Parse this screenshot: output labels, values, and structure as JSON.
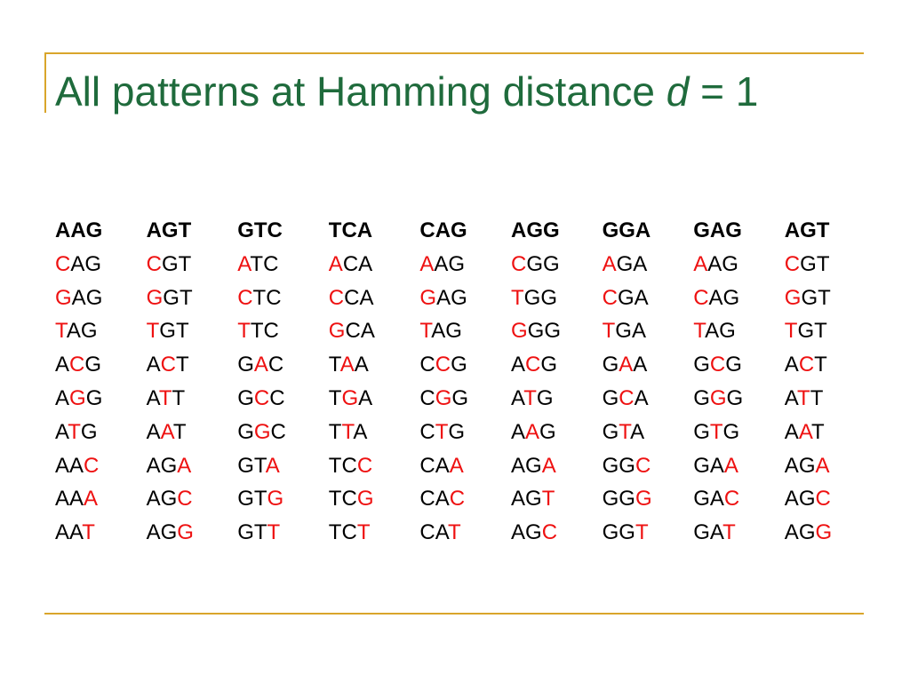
{
  "slide": {
    "title_prefix": "All patterns at Hamming distance ",
    "title_variable": "d",
    "title_suffix": " = 1"
  },
  "colors": {
    "title": "#1f6b3c",
    "rule": "#d9a52b",
    "mismatch": "#ee1111",
    "text": "#000000"
  },
  "table": {
    "columns": [
      {
        "header": "AAG",
        "neighbors": [
          {
            "text": "CAG",
            "pos": 0
          },
          {
            "text": "GAG",
            "pos": 0
          },
          {
            "text": "TAG",
            "pos": 0
          },
          {
            "text": "ACG",
            "pos": 1
          },
          {
            "text": "AGG",
            "pos": 1
          },
          {
            "text": "ATG",
            "pos": 1
          },
          {
            "text": "AAC",
            "pos": 2
          },
          {
            "text": "AAA",
            "pos": 2
          },
          {
            "text": "AAT",
            "pos": 2
          }
        ]
      },
      {
        "header": "AGT",
        "neighbors": [
          {
            "text": "CGT",
            "pos": 0
          },
          {
            "text": "GGT",
            "pos": 0
          },
          {
            "text": "TGT",
            "pos": 0
          },
          {
            "text": "ACT",
            "pos": 1
          },
          {
            "text": "ATT",
            "pos": 1
          },
          {
            "text": "AAT",
            "pos": 1
          },
          {
            "text": "AGA",
            "pos": 2
          },
          {
            "text": "AGC",
            "pos": 2
          },
          {
            "text": "AGG",
            "pos": 2
          }
        ]
      },
      {
        "header": "GTC",
        "neighbors": [
          {
            "text": "ATC",
            "pos": 0
          },
          {
            "text": "CTC",
            "pos": 0
          },
          {
            "text": "TTC",
            "pos": 0
          },
          {
            "text": "GAC",
            "pos": 1
          },
          {
            "text": "GCC",
            "pos": 1
          },
          {
            "text": "GGC",
            "pos": 1
          },
          {
            "text": "GTA",
            "pos": 2
          },
          {
            "text": "GTG",
            "pos": 2
          },
          {
            "text": "GTT",
            "pos": 2
          }
        ]
      },
      {
        "header": "TCA",
        "neighbors": [
          {
            "text": "ACA",
            "pos": 0
          },
          {
            "text": "CCA",
            "pos": 0
          },
          {
            "text": "GCA",
            "pos": 0
          },
          {
            "text": "TAA",
            "pos": 1
          },
          {
            "text": "TGA",
            "pos": 1
          },
          {
            "text": "TTA",
            "pos": 1
          },
          {
            "text": "TCC",
            "pos": 2
          },
          {
            "text": "TCG",
            "pos": 2
          },
          {
            "text": "TCT",
            "pos": 2
          }
        ]
      },
      {
        "header": "CAG",
        "neighbors": [
          {
            "text": "AAG",
            "pos": 0
          },
          {
            "text": "GAG",
            "pos": 0
          },
          {
            "text": "TAG",
            "pos": 0
          },
          {
            "text": "CCG",
            "pos": 1
          },
          {
            "text": "CGG",
            "pos": 1
          },
          {
            "text": "CTG",
            "pos": 1
          },
          {
            "text": "CAA",
            "pos": 2
          },
          {
            "text": "CAC",
            "pos": 2
          },
          {
            "text": "CAT",
            "pos": 2
          }
        ]
      },
      {
        "header": "AGG",
        "neighbors": [
          {
            "text": "CGG",
            "pos": 0
          },
          {
            "text": "TGG",
            "pos": 0
          },
          {
            "text": "GGG",
            "pos": 0
          },
          {
            "text": "ACG",
            "pos": 1
          },
          {
            "text": "ATG",
            "pos": 1
          },
          {
            "text": "AAG",
            "pos": 1
          },
          {
            "text": "AGA",
            "pos": 2
          },
          {
            "text": "AGT",
            "pos": 2
          },
          {
            "text": "AGC",
            "pos": 2
          }
        ]
      },
      {
        "header": "GGA",
        "neighbors": [
          {
            "text": "AGA",
            "pos": 0
          },
          {
            "text": "CGA",
            "pos": 0
          },
          {
            "text": "TGA",
            "pos": 0
          },
          {
            "text": "GAA",
            "pos": 1
          },
          {
            "text": "GCA",
            "pos": 1
          },
          {
            "text": "GTA",
            "pos": 1
          },
          {
            "text": "GGC",
            "pos": 2
          },
          {
            "text": "GGG",
            "pos": 2
          },
          {
            "text": "GGT",
            "pos": 2
          }
        ]
      },
      {
        "header": "GAG",
        "neighbors": [
          {
            "text": "AAG",
            "pos": 0
          },
          {
            "text": "CAG",
            "pos": 0
          },
          {
            "text": "TAG",
            "pos": 0
          },
          {
            "text": "GCG",
            "pos": 1
          },
          {
            "text": "GGG",
            "pos": 1
          },
          {
            "text": "GTG",
            "pos": 1
          },
          {
            "text": "GAA",
            "pos": 2
          },
          {
            "text": "GAC",
            "pos": 2
          },
          {
            "text": "GAT",
            "pos": 2
          }
        ]
      },
      {
        "header": "AGT",
        "neighbors": [
          {
            "text": "CGT",
            "pos": 0
          },
          {
            "text": "GGT",
            "pos": 0
          },
          {
            "text": "TGT",
            "pos": 0
          },
          {
            "text": "ACT",
            "pos": 1
          },
          {
            "text": "ATT",
            "pos": 1
          },
          {
            "text": "AAT",
            "pos": 1
          },
          {
            "text": "AGA",
            "pos": 2
          },
          {
            "text": "AGC",
            "pos": 2
          },
          {
            "text": "AGG",
            "pos": 2
          }
        ]
      }
    ]
  }
}
